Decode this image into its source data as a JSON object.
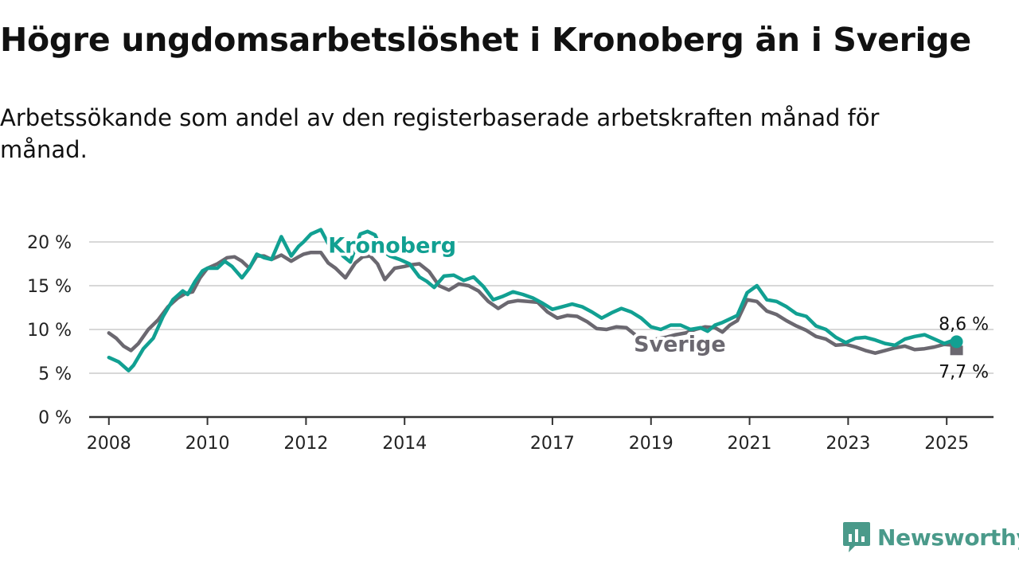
{
  "title": "Högre ungdomsarbetslöshet i Kronoberg än i Sverige",
  "subtitle": "Arbetssökande som andel av den registerbaserade arbetskraften månad för månad.",
  "brand": {
    "name": "Newsworthy",
    "icon": "newsworthy-logo-icon"
  },
  "colors": {
    "kronoberg": "#11a092",
    "sverige": "#6b6870",
    "grid": "#d8d8d8",
    "axis": "#333333"
  },
  "chart_data": {
    "type": "line",
    "title": "Högre ungdomsarbetslöshet i Kronoberg än i Sverige",
    "ylabel": "",
    "xlabel": "",
    "ylim": [
      0,
      20
    ],
    "xlim": [
      2007.6,
      2025.95
    ],
    "y_ticks": [
      0,
      5,
      10,
      15,
      20
    ],
    "y_tick_labels": [
      "0 %",
      "5 %",
      "10 %",
      "15 %",
      "20 %"
    ],
    "x_ticks": [
      2008,
      2010,
      2012,
      2014,
      2017,
      2019,
      2021,
      2023,
      2025
    ],
    "x_tick_labels": [
      "2008",
      "2010",
      "2012",
      "2014",
      "2017",
      "2019",
      "2021",
      "2023",
      "2025"
    ],
    "grid": true,
    "series": [
      {
        "name": "Kronoberg",
        "end_label": "8,6 %",
        "x": [
          2008.0,
          2008.2,
          2008.4,
          2008.5,
          2008.7,
          2008.9,
          2009.1,
          2009.3,
          2009.5,
          2009.6,
          2009.75,
          2009.9,
          2010.0,
          2010.2,
          2010.35,
          2010.5,
          2010.7,
          2010.85,
          2011.0,
          2011.15,
          2011.3,
          2011.5,
          2011.7,
          2011.85,
          2011.95,
          2012.1,
          2012.3,
          2012.45,
          2012.6,
          2012.75,
          2012.9,
          2013.1,
          2013.25,
          2013.4,
          2013.55,
          2013.7,
          2013.9,
          2014.1,
          2014.3,
          2014.45,
          2014.6,
          2014.8,
          2015.0,
          2015.2,
          2015.4,
          2015.6,
          2015.8,
          2016.0,
          2016.2,
          2016.4,
          2016.6,
          2016.8,
          2017.0,
          2017.2,
          2017.4,
          2017.6,
          2017.8,
          2018.0,
          2018.2,
          2018.4,
          2018.6,
          2018.8,
          2019.0,
          2019.2,
          2019.4,
          2019.6,
          2019.8,
          2020.0,
          2020.15,
          2020.3,
          2020.45,
          2020.6,
          2020.75,
          2020.95,
          2021.15,
          2021.35,
          2021.55,
          2021.75,
          2021.95,
          2022.15,
          2022.35,
          2022.55,
          2022.75,
          2022.95,
          2023.15,
          2023.35,
          2023.55,
          2023.75,
          2023.95,
          2024.15,
          2024.35,
          2024.55,
          2024.75,
          2024.95,
          2025.15,
          2025.2
        ],
        "y": [
          6.8,
          6.3,
          5.3,
          5.9,
          7.8,
          9.0,
          11.5,
          13.4,
          14.4,
          14.0,
          15.5,
          16.7,
          17.0,
          17.0,
          17.8,
          17.2,
          15.9,
          17.0,
          18.6,
          18.2,
          18.0,
          20.6,
          18.4,
          19.5,
          20.0,
          20.9,
          21.4,
          19.8,
          19.4,
          18.4,
          17.7,
          20.9,
          21.2,
          20.8,
          19.0,
          18.4,
          18.0,
          17.5,
          16.0,
          15.5,
          14.8,
          16.1,
          16.2,
          15.6,
          16.0,
          14.9,
          13.4,
          13.8,
          14.3,
          14.0,
          13.6,
          13.0,
          12.3,
          12.6,
          12.9,
          12.6,
          12.0,
          11.3,
          11.9,
          12.4,
          12.0,
          11.3,
          10.3,
          10.0,
          10.5,
          10.5,
          10.0,
          10.2,
          9.8,
          10.5,
          10.8,
          11.2,
          11.6,
          14.2,
          15.0,
          13.4,
          13.2,
          12.6,
          11.8,
          11.5,
          10.4,
          10.0,
          9.1,
          8.5,
          9.0,
          9.1,
          8.8,
          8.4,
          8.2,
          8.9,
          9.2,
          9.4,
          8.9,
          8.4,
          8.8,
          8.6
        ]
      },
      {
        "name": "Sverige",
        "end_label": "7,7 %",
        "x": [
          2008.0,
          2008.15,
          2008.3,
          2008.45,
          2008.6,
          2008.8,
          2009.0,
          2009.2,
          2009.4,
          2009.55,
          2009.7,
          2009.85,
          2010.0,
          2010.2,
          2010.4,
          2010.55,
          2010.7,
          2010.85,
          2011.0,
          2011.15,
          2011.3,
          2011.5,
          2011.7,
          2011.85,
          2011.95,
          2012.1,
          2012.3,
          2012.45,
          2012.6,
          2012.8,
          2013.0,
          2013.15,
          2013.3,
          2013.45,
          2013.6,
          2013.8,
          2014.0,
          2014.15,
          2014.3,
          2014.5,
          2014.7,
          2014.9,
          2015.1,
          2015.3,
          2015.5,
          2015.7,
          2015.9,
          2016.1,
          2016.3,
          2016.5,
          2016.7,
          2016.9,
          2017.1,
          2017.3,
          2017.5,
          2017.7,
          2017.9,
          2018.1,
          2018.3,
          2018.5,
          2018.7,
          2018.9,
          2019.1,
          2019.3,
          2019.5,
          2019.7,
          2019.9,
          2020.1,
          2020.3,
          2020.45,
          2020.6,
          2020.75,
          2020.95,
          2021.15,
          2021.35,
          2021.55,
          2021.75,
          2021.95,
          2022.15,
          2022.35,
          2022.55,
          2022.75,
          2022.95,
          2023.15,
          2023.35,
          2023.55,
          2023.75,
          2023.95,
          2024.15,
          2024.35,
          2024.55,
          2024.75,
          2024.95,
          2025.15,
          2025.2
        ],
        "y": [
          9.6,
          9.0,
          8.1,
          7.6,
          8.4,
          10.0,
          11.1,
          12.6,
          13.6,
          14.1,
          14.3,
          15.9,
          17.0,
          17.5,
          18.2,
          18.3,
          17.8,
          17.0,
          18.4,
          18.4,
          18.0,
          18.5,
          17.8,
          18.3,
          18.6,
          18.8,
          18.8,
          17.6,
          17.0,
          15.9,
          17.6,
          18.3,
          18.4,
          17.5,
          15.7,
          17.0,
          17.2,
          17.4,
          17.5,
          16.6,
          15.0,
          14.5,
          15.2,
          15.0,
          14.4,
          13.2,
          12.4,
          13.1,
          13.3,
          13.2,
          13.1,
          12.0,
          11.3,
          11.6,
          11.5,
          10.9,
          10.1,
          10.0,
          10.3,
          10.2,
          9.3,
          8.4,
          8.9,
          9.1,
          9.4,
          9.6,
          10.0,
          10.3,
          10.2,
          9.7,
          10.5,
          11.0,
          13.4,
          13.2,
          12.1,
          11.7,
          11.0,
          10.4,
          9.9,
          9.2,
          8.9,
          8.2,
          8.3,
          8.0,
          7.6,
          7.3,
          7.6,
          7.9,
          8.1,
          7.7,
          7.8,
          8.0,
          8.3,
          8.2,
          7.7
        ]
      }
    ],
    "labels": [
      {
        "series": "Kronoberg",
        "text": "Kronoberg",
        "x": 2012.45,
        "y": 19.6
      },
      {
        "series": "Sverige",
        "text": "Sverige",
        "x": 2018.65,
        "y": 8.3
      }
    ]
  }
}
